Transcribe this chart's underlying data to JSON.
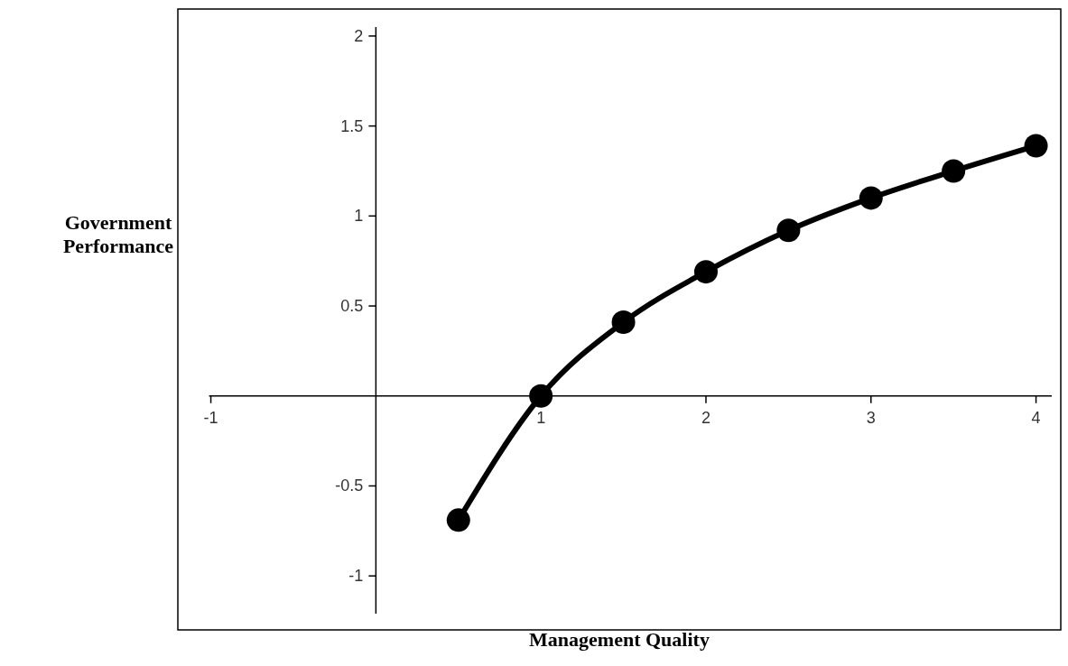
{
  "chart_data": {
    "type": "line",
    "xlabel": "Management Quality",
    "ylabel": "Government Performance",
    "x": [
      0.5,
      1,
      1.5,
      2,
      2.5,
      3,
      3.5,
      4
    ],
    "series": [
      {
        "color": "#000000",
        "values": [
          -0.69,
          0,
          0.41,
          0.69,
          0.92,
          1.1,
          1.25,
          1.39
        ]
      }
    ],
    "xlim": [
      -1.2,
      4.15
    ],
    "ylim": [
      -1.3,
      2.15
    ],
    "xticks": [
      -1,
      1,
      2,
      3,
      4
    ],
    "yticks": [
      -1,
      -0.5,
      0.5,
      1,
      1.5,
      2
    ],
    "grid": false,
    "legend": false,
    "marker": "circle",
    "line_style": "solid"
  }
}
